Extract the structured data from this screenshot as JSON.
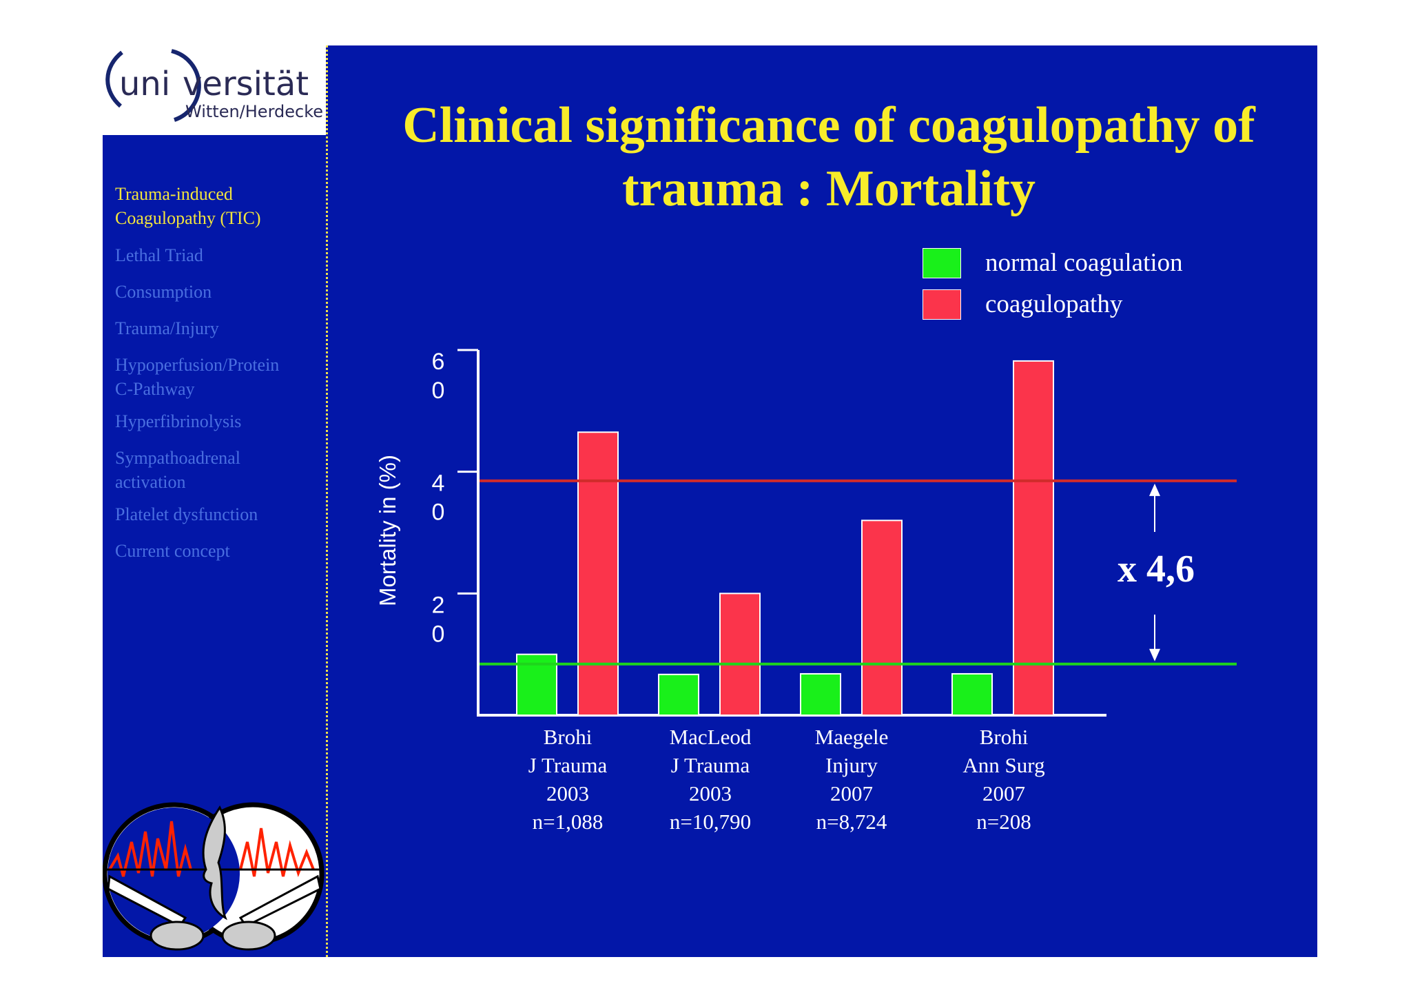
{
  "logo": {
    "uni": "uni",
    "versitat": "versität",
    "subline": "Witten/Herdecke"
  },
  "sidebar": {
    "items": [
      {
        "label_lines": [
          "Trauma-induced",
          "Coagulopathy (TIC)"
        ],
        "active": true
      },
      {
        "label_lines": [
          "Lethal Triad"
        ],
        "active": false
      },
      {
        "label_lines": [
          "Consumption"
        ],
        "active": false
      },
      {
        "label_lines": [
          "Trauma/Injury"
        ],
        "active": false
      },
      {
        "label_lines": [
          "Hypoperfusion/Protein",
          "C-Pathway"
        ],
        "active": false
      },
      {
        "label_lines": [
          "Hyperfibrinolysis"
        ],
        "active": false
      },
      {
        "label_lines": [
          "Sympathoadrenal",
          "activation"
        ],
        "active": false
      },
      {
        "label_lines": [
          "Platelet dysfunction"
        ],
        "active": false
      },
      {
        "label_lines": [
          "Current concept"
        ],
        "active": false
      }
    ]
  },
  "slide": {
    "title_line1": "Clinical significance of coagulopathy of",
    "title_line2": "trauma : Mortality"
  },
  "colors": {
    "slide_bg": "#0317a8",
    "title": "#f8ec2a",
    "normal": "#19f01a",
    "coagulopathy": "#fb344b",
    "ref_high": "#d12b2b",
    "ref_low": "#1ed51c"
  },
  "chart_data": {
    "type": "bar",
    "ylabel": "Mortality in (%)",
    "ylim": [
      0,
      60
    ],
    "y_ticks": [
      {
        "value": 20,
        "label_lines": [
          "2",
          "0"
        ]
      },
      {
        "value": 40,
        "label_lines": [
          "4",
          "0"
        ]
      },
      {
        "value": 60,
        "label_lines": [
          "6",
          "0"
        ]
      }
    ],
    "categories": [
      [
        "Brohi",
        "J Trauma",
        "2003",
        "n=1,088"
      ],
      [
        "MacLeod",
        "J Trauma",
        "2003",
        "n=10,790"
      ],
      [
        "Maegele",
        "Injury",
        "2007",
        "n=8,724"
      ],
      [
        "Brohi",
        "Ann Surg",
        "2007",
        "n=208"
      ]
    ],
    "series": [
      {
        "name": "normal coagulation",
        "values": [
          10,
          6.7,
          6.8,
          6.8
        ]
      },
      {
        "name": "coagulopathy",
        "values": [
          46.5,
          20,
          32,
          58.2
        ]
      }
    ],
    "reference_lines": [
      38.5,
      8.4
    ],
    "annotation": "x 4,6",
    "legend_position": "top-right"
  }
}
